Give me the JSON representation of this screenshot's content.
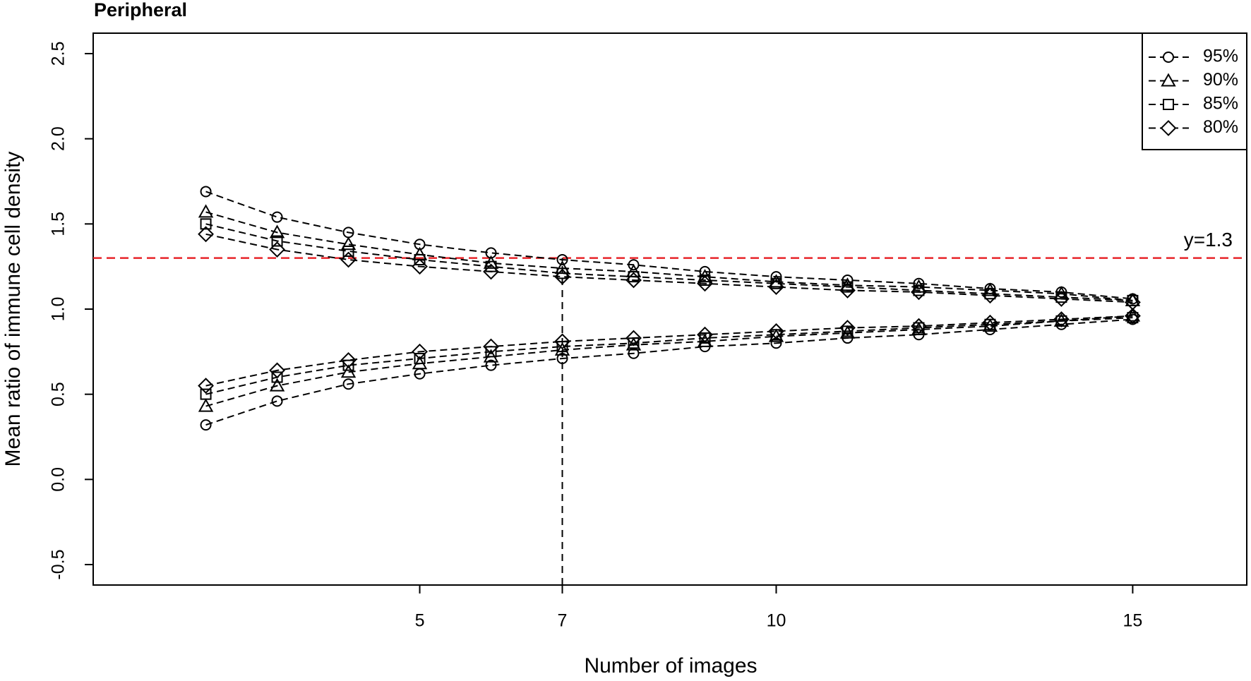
{
  "chart_data": {
    "type": "line",
    "title": "Peripheral",
    "x_label": "Number of images",
    "y_label": "Mean ratio of immune cell density",
    "x": [
      2,
      3,
      4,
      5,
      6,
      7,
      8,
      9,
      10,
      11,
      12,
      13,
      14,
      15
    ],
    "series": [
      {
        "name": "95%",
        "marker": "circle",
        "color": "#000000",
        "upper": [
          1.69,
          1.54,
          1.45,
          1.38,
          1.33,
          1.29,
          1.26,
          1.22,
          1.19,
          1.17,
          1.15,
          1.12,
          1.1,
          1.06
        ],
        "lower": [
          0.32,
          0.46,
          0.56,
          0.62,
          0.67,
          0.71,
          0.74,
          0.78,
          0.8,
          0.83,
          0.85,
          0.88,
          0.91,
          0.94
        ]
      },
      {
        "name": "90%",
        "marker": "triangle",
        "color": "#000000",
        "upper": [
          1.57,
          1.45,
          1.38,
          1.32,
          1.27,
          1.24,
          1.22,
          1.19,
          1.16,
          1.14,
          1.13,
          1.11,
          1.09,
          1.05
        ],
        "lower": [
          0.43,
          0.55,
          0.63,
          0.68,
          0.72,
          0.76,
          0.79,
          0.81,
          0.84,
          0.86,
          0.88,
          0.9,
          0.93,
          0.96
        ]
      },
      {
        "name": "85%",
        "marker": "square",
        "color": "#000000",
        "upper": [
          1.5,
          1.4,
          1.34,
          1.29,
          1.25,
          1.21,
          1.19,
          1.17,
          1.15,
          1.13,
          1.11,
          1.09,
          1.07,
          1.05
        ],
        "lower": [
          0.5,
          0.6,
          0.67,
          0.71,
          0.75,
          0.78,
          0.8,
          0.83,
          0.85,
          0.87,
          0.89,
          0.91,
          0.93,
          0.95
        ]
      },
      {
        "name": "80%",
        "marker": "diamond",
        "color": "#000000",
        "upper": [
          1.44,
          1.35,
          1.29,
          1.25,
          1.22,
          1.19,
          1.17,
          1.15,
          1.13,
          1.11,
          1.1,
          1.08,
          1.06,
          1.04
        ],
        "lower": [
          0.55,
          0.64,
          0.7,
          0.75,
          0.78,
          0.81,
          0.83,
          0.85,
          0.87,
          0.89,
          0.9,
          0.92,
          0.94,
          0.96
        ]
      }
    ],
    "hline": {
      "y": 1.3,
      "label": "y=1.3",
      "color": "#e8262a"
    },
    "vline": 7,
    "xlim": [
      0.42,
      16.6
    ],
    "xticks": [
      5,
      7,
      10,
      15
    ],
    "ylim": [
      -0.62,
      2.62
    ],
    "yticks": [
      -0.5,
      {
        "value": 0,
        "label": "0.0"
      },
      0.5,
      {
        "value": 1,
        "label": "1.0"
      },
      1.5,
      {
        "value": 2,
        "label": "2.0"
      },
      2.5
    ],
    "legend": "topright",
    "grid": false
  }
}
